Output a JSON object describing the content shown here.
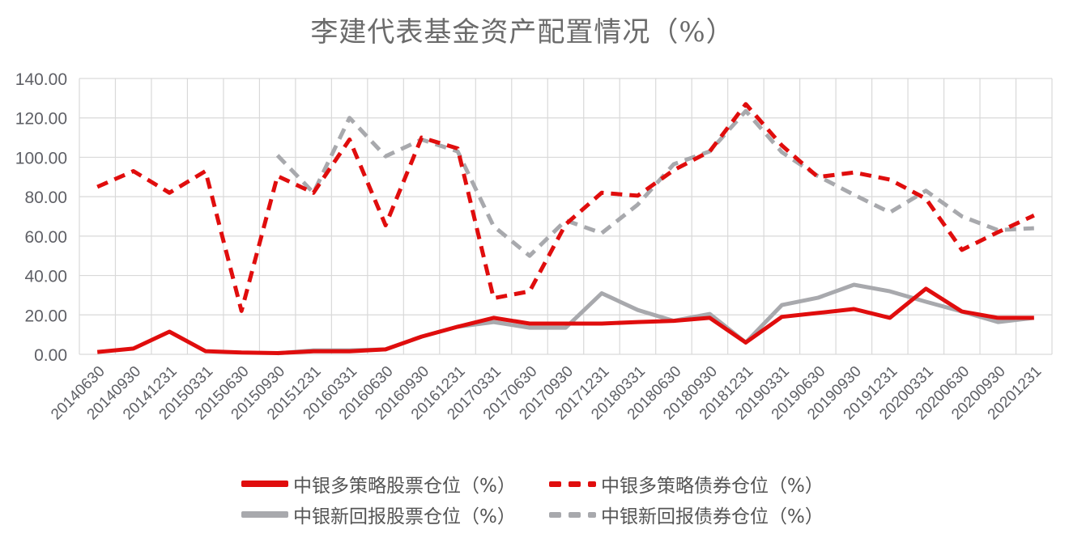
{
  "title": "李建代表基金资产配置情况（%）",
  "chart_data": {
    "type": "line",
    "title": "李建代表基金资产配置情况（%）",
    "xlabel": "",
    "ylabel": "",
    "ylim": [
      0,
      140
    ],
    "yticks": [
      "0.00",
      "20.00",
      "40.00",
      "60.00",
      "80.00",
      "100.00",
      "120.00",
      "140.00"
    ],
    "grid": true,
    "legend_position": "bottom",
    "categories": [
      "20140630",
      "20140930",
      "20141231",
      "20150331",
      "20150630",
      "20150930",
      "20151231",
      "20160331",
      "20160630",
      "20160930",
      "20161231",
      "20170331",
      "20170630",
      "20170930",
      "20171231",
      "20180331",
      "20180630",
      "20180930",
      "20181231",
      "20190331",
      "20190630",
      "20190930",
      "20191231",
      "20200331",
      "20200630",
      "20200930",
      "20201231"
    ],
    "series": [
      {
        "name": "中银多策略股票仓位（%）",
        "color": "#e00d0d",
        "style": "solid",
        "values": [
          1.2,
          2.9,
          11.5,
          1.6,
          0.9,
          0.6,
          1.5,
          1.5,
          2.5,
          9,
          14,
          18.5,
          15.6,
          15.6,
          15.6,
          16.4,
          17,
          18.5,
          6,
          19,
          21,
          23,
          18.5,
          33.3,
          21.7,
          18.5,
          18.5
        ]
      },
      {
        "name": "中银多策略债券仓位（%）",
        "color": "#e00d0d",
        "style": "dashed",
        "values": [
          85,
          93,
          82,
          93,
          22,
          90.5,
          82,
          109,
          65.5,
          110,
          104.5,
          28.5,
          32,
          66,
          82,
          80.5,
          93.5,
          103,
          127,
          106,
          90,
          92.3,
          88.7,
          79,
          53,
          62,
          70.5
        ]
      },
      {
        "name": "中银新回报股票仓位（%）",
        "color": "#a8a9ad",
        "style": "solid",
        "values": [
          null,
          null,
          null,
          null,
          null,
          0.5,
          2,
          2,
          2.5,
          9,
          14,
          16.4,
          13.5,
          13.5,
          31,
          22.5,
          17,
          20.5,
          6,
          25,
          28.7,
          35.3,
          32,
          26.7,
          21.7,
          16.4,
          18.5
        ]
      },
      {
        "name": "中银新回报债券仓位（%）",
        "color": "#a8a9ad",
        "style": "dashed",
        "values": [
          null,
          null,
          null,
          null,
          null,
          101,
          82,
          120,
          100.5,
          109,
          103,
          65,
          50,
          68,
          61.5,
          76,
          96.5,
          103,
          123.5,
          102.6,
          90.5,
          81,
          72,
          83,
          70,
          63,
          64
        ]
      }
    ]
  },
  "legend": [
    {
      "label": "中银多策略股票仓位（%）",
      "color": "#e00d0d",
      "style": "solid"
    },
    {
      "label": "中银多策略债券仓位（%）",
      "color": "#e00d0d",
      "style": "dashed"
    },
    {
      "label": "中银新回报股票仓位（%）",
      "color": "#a8a9ad",
      "style": "solid"
    },
    {
      "label": "中银新回报债券仓位（%）",
      "color": "#a8a9ad",
      "style": "dashed"
    }
  ]
}
